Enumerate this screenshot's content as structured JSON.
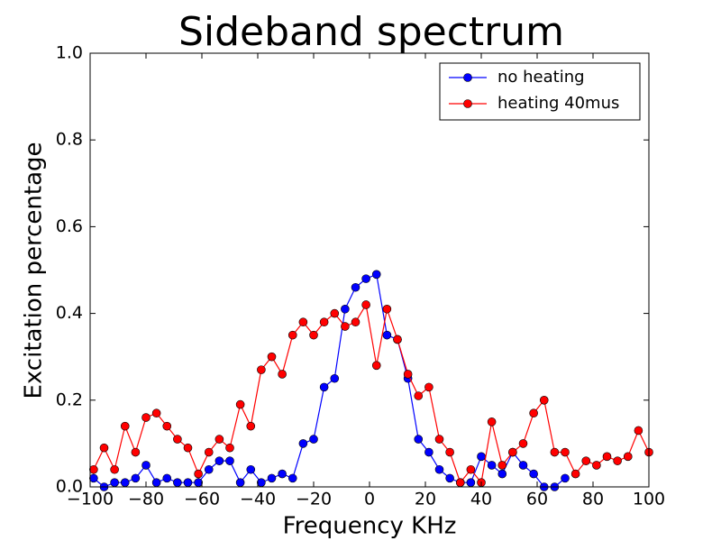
{
  "chart_data": {
    "type": "line",
    "title": "Sideband spectrum",
    "x_label": "Frequency KHz",
    "y_label": "Excitation percentage",
    "xlim": [
      -100,
      100
    ],
    "ylim": [
      0,
      1.0
    ],
    "xticks": [
      {
        "value": -100,
        "label": "−100"
      },
      {
        "value": -80,
        "label": "−80"
      },
      {
        "value": -60,
        "label": "−60"
      },
      {
        "value": -40,
        "label": "−40"
      },
      {
        "value": -20,
        "label": "−20"
      },
      0,
      20,
      40,
      60,
      80,
      100
    ],
    "yticks": [
      {
        "value": 0,
        "label": "0.0"
      },
      0.2,
      0.4,
      0.6,
      0.8,
      {
        "value": 1,
        "label": "1.0"
      }
    ],
    "legend": "upper right",
    "series": [
      {
        "name": "no heating",
        "color": "#0000ff",
        "x": [
          -98.75,
          -95,
          -91.25,
          -87.5,
          -83.75,
          -80,
          -76.25,
          -72.5,
          -68.75,
          -65,
          -61.25,
          -57.5,
          -53.75,
          -50,
          -46.25,
          -42.5,
          -38.75,
          -35,
          -31.25,
          -27.5,
          -23.75,
          -20,
          -16.25,
          -12.5,
          -8.75,
          -5,
          -1.25,
          2.5,
          6.25,
          10,
          13.75,
          17.5,
          21.25,
          25,
          28.75,
          32.5,
          36.25,
          40,
          43.75,
          47.5,
          51.25,
          55,
          58.75,
          62.5,
          66.25,
          70
        ],
        "values": [
          0.02,
          0.0,
          0.01,
          0.01,
          0.02,
          0.05,
          0.01,
          0.02,
          0.01,
          0.01,
          0.01,
          0.04,
          0.06,
          0.06,
          0.01,
          0.04,
          0.01,
          0.02,
          0.03,
          0.02,
          0.1,
          0.11,
          0.23,
          0.25,
          0.41,
          0.46,
          0.48,
          0.49,
          0.35,
          0.34,
          0.25,
          0.11,
          0.08,
          0.04,
          0.02,
          0.01,
          0.01,
          0.07,
          0.05,
          0.03,
          0.08,
          0.05,
          0.03,
          0.0,
          0.0,
          0.02
        ]
      },
      {
        "name": "heating 40mus",
        "color": "#ff0000",
        "x": [
          -98.75,
          -95,
          -91.25,
          -87.5,
          -83.75,
          -80,
          -76.25,
          -72.5,
          -68.75,
          -65,
          -61.25,
          -57.5,
          -53.75,
          -50,
          -46.25,
          -42.5,
          -38.75,
          -35,
          -31.25,
          -27.5,
          -23.75,
          -20,
          -16.25,
          -12.5,
          -8.75,
          -5,
          -1.25,
          2.5,
          6.25,
          10,
          13.75,
          17.5,
          21.25,
          25,
          28.75,
          32.5,
          36.25,
          40,
          43.75,
          47.5,
          51.25,
          55,
          58.75,
          62.5,
          66.25,
          70,
          73.75,
          77.5,
          81.25,
          85,
          88.75,
          92.5,
          96.25,
          100
        ],
        "values": [
          0.04,
          0.09,
          0.04,
          0.14,
          0.08,
          0.16,
          0.17,
          0.14,
          0.11,
          0.09,
          0.03,
          0.08,
          0.11,
          0.09,
          0.19,
          0.14,
          0.27,
          0.3,
          0.26,
          0.35,
          0.38,
          0.35,
          0.38,
          0.4,
          0.37,
          0.38,
          0.42,
          0.28,
          0.41,
          0.34,
          0.26,
          0.21,
          0.23,
          0.11,
          0.08,
          0.01,
          0.04,
          0.01,
          0.15,
          0.05,
          0.08,
          0.1,
          0.17,
          0.2,
          0.08,
          0.08,
          0.03,
          0.06,
          0.05,
          0.07,
          0.06,
          0.07,
          0.13,
          0.08
        ]
      }
    ]
  }
}
